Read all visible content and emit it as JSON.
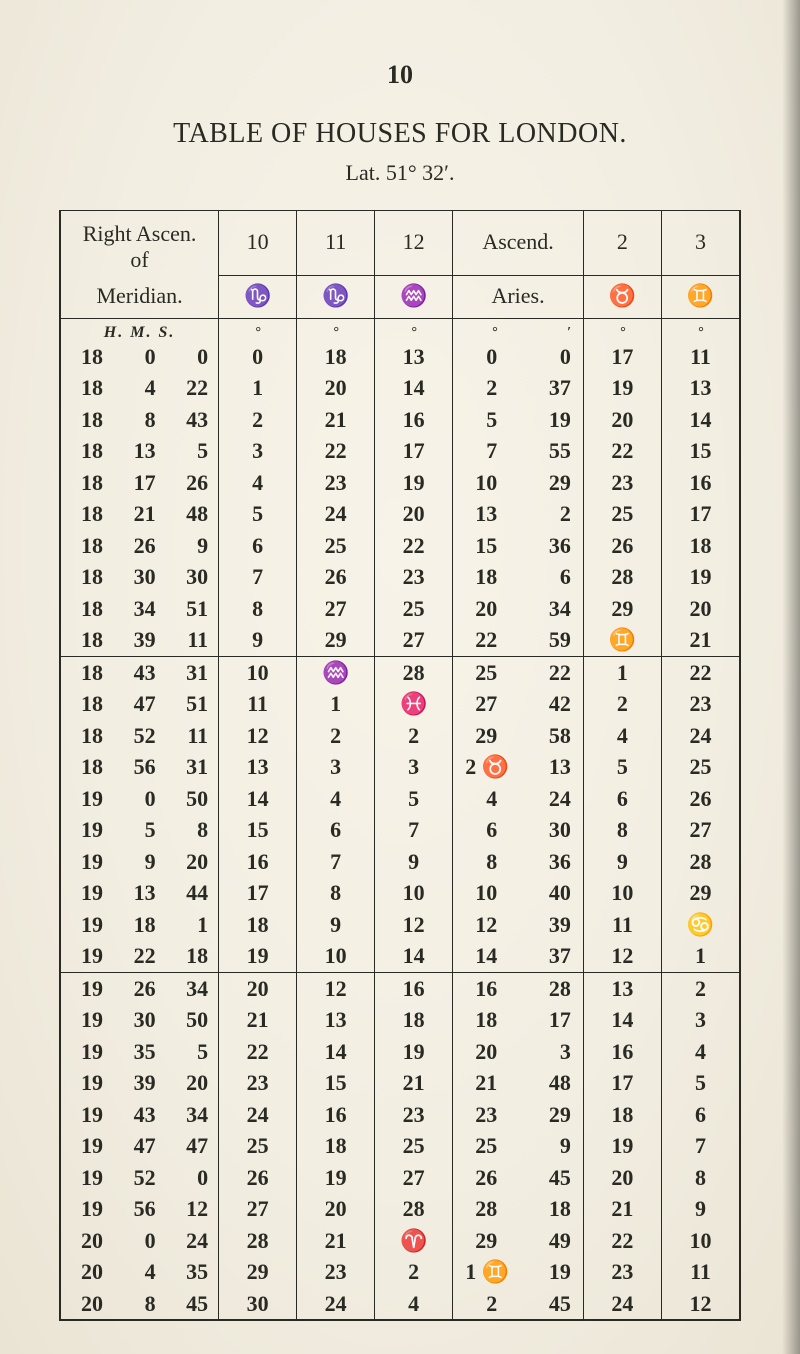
{
  "page_number": "10",
  "title": "TABLE OF HOUSES FOR LONDON.",
  "subtitle": "Lat. 51° 32′.",
  "colors": {
    "background": "#f3efe4",
    "text": "#2a2a24",
    "rule": "#2a2a24"
  },
  "typography": {
    "body_pt": 22,
    "title_pt": 28,
    "family": "serif"
  },
  "header": {
    "ra_line1": "Right Ascen.",
    "ra_line2": "of",
    "ra_line3": "Meridian.",
    "cols_numbers": [
      "10",
      "11",
      "12",
      "Ascend.",
      "2",
      "3"
    ],
    "symbols": [
      "♑",
      "♑",
      "♒",
      "Aries.",
      "♉",
      "♊"
    ],
    "hms": "H.   M.   S.",
    "unit_deg": "°",
    "unit_deg_min": [
      "°",
      "′"
    ]
  },
  "rows": [
    {
      "t": [
        "18",
        "0",
        "0"
      ],
      "c10": "0",
      "c11": "18",
      "c12": "13",
      "asc": [
        "0",
        "0"
      ],
      "c2": "17",
      "c3": "11"
    },
    {
      "t": [
        "18",
        "4",
        "22"
      ],
      "c10": "1",
      "c11": "20",
      "c12": "14",
      "asc": [
        "2",
        "37"
      ],
      "c2": "19",
      "c3": "13"
    },
    {
      "t": [
        "18",
        "8",
        "43"
      ],
      "c10": "2",
      "c11": "21",
      "c12": "16",
      "asc": [
        "5",
        "19"
      ],
      "c2": "20",
      "c3": "14"
    },
    {
      "t": [
        "18",
        "13",
        "5"
      ],
      "c10": "3",
      "c11": "22",
      "c12": "17",
      "asc": [
        "7",
        "55"
      ],
      "c2": "22",
      "c3": "15"
    },
    {
      "t": [
        "18",
        "17",
        "26"
      ],
      "c10": "4",
      "c11": "23",
      "c12": "19",
      "asc": [
        "10",
        "29"
      ],
      "c2": "23",
      "c3": "16"
    },
    {
      "t": [
        "18",
        "21",
        "48"
      ],
      "c10": "5",
      "c11": "24",
      "c12": "20",
      "asc": [
        "13",
        "2"
      ],
      "c2": "25",
      "c3": "17"
    },
    {
      "t": [
        "18",
        "26",
        "9"
      ],
      "c10": "6",
      "c11": "25",
      "c12": "22",
      "asc": [
        "15",
        "36"
      ],
      "c2": "26",
      "c3": "18"
    },
    {
      "t": [
        "18",
        "30",
        "30"
      ],
      "c10": "7",
      "c11": "26",
      "c12": "23",
      "asc": [
        "18",
        "6"
      ],
      "c2": "28",
      "c3": "19"
    },
    {
      "t": [
        "18",
        "34",
        "51"
      ],
      "c10": "8",
      "c11": "27",
      "c12": "25",
      "asc": [
        "20",
        "34"
      ],
      "c2": "29",
      "c3": "20"
    },
    {
      "t": [
        "18",
        "39",
        "11"
      ],
      "c10": "9",
      "c11": "29",
      "c12": "27",
      "asc": [
        "22",
        "59"
      ],
      "c2": "♊",
      "c3": "21"
    },
    {
      "t": [
        "18",
        "43",
        "31"
      ],
      "c10": "10",
      "c11": "♒",
      "c12": "28",
      "asc": [
        "25",
        "22"
      ],
      "c2": "1",
      "c3": "22"
    },
    {
      "t": [
        "18",
        "47",
        "51"
      ],
      "c10": "11",
      "c11": "1",
      "c12": "♓",
      "asc": [
        "27",
        "42"
      ],
      "c2": "2",
      "c3": "23"
    },
    {
      "t": [
        "18",
        "52",
        "11"
      ],
      "c10": "12",
      "c11": "2",
      "c12": "2",
      "asc": [
        "29",
        "58"
      ],
      "c2": "4",
      "c3": "24"
    },
    {
      "t": [
        "18",
        "56",
        "31"
      ],
      "c10": "13",
      "c11": "3",
      "c12": "3",
      "asc": [
        "2 ♉",
        "13"
      ],
      "c2": "5",
      "c3": "25"
    },
    {
      "t": [
        "19",
        "0",
        "50"
      ],
      "c10": "14",
      "c11": "4",
      "c12": "5",
      "asc": [
        "4",
        "24"
      ],
      "c2": "6",
      "c3": "26"
    },
    {
      "t": [
        "19",
        "5",
        "8"
      ],
      "c10": "15",
      "c11": "6",
      "c12": "7",
      "asc": [
        "6",
        "30"
      ],
      "c2": "8",
      "c3": "27"
    },
    {
      "t": [
        "19",
        "9",
        "20"
      ],
      "c10": "16",
      "c11": "7",
      "c12": "9",
      "asc": [
        "8",
        "36"
      ],
      "c2": "9",
      "c3": "28"
    },
    {
      "t": [
        "19",
        "13",
        "44"
      ],
      "c10": "17",
      "c11": "8",
      "c12": "10",
      "asc": [
        "10",
        "40"
      ],
      "c2": "10",
      "c3": "29"
    },
    {
      "t": [
        "19",
        "18",
        "1"
      ],
      "c10": "18",
      "c11": "9",
      "c12": "12",
      "asc": [
        "12",
        "39"
      ],
      "c2": "11",
      "c3": "♋"
    },
    {
      "t": [
        "19",
        "22",
        "18"
      ],
      "c10": "19",
      "c11": "10",
      "c12": "14",
      "asc": [
        "14",
        "37"
      ],
      "c2": "12",
      "c3": "1"
    },
    {
      "t": [
        "19",
        "26",
        "34"
      ],
      "c10": "20",
      "c11": "12",
      "c12": "16",
      "asc": [
        "16",
        "28"
      ],
      "c2": "13",
      "c3": "2"
    },
    {
      "t": [
        "19",
        "30",
        "50"
      ],
      "c10": "21",
      "c11": "13",
      "c12": "18",
      "asc": [
        "18",
        "17"
      ],
      "c2": "14",
      "c3": "3"
    },
    {
      "t": [
        "19",
        "35",
        "5"
      ],
      "c10": "22",
      "c11": "14",
      "c12": "19",
      "asc": [
        "20",
        "3"
      ],
      "c2": "16",
      "c3": "4"
    },
    {
      "t": [
        "19",
        "39",
        "20"
      ],
      "c10": "23",
      "c11": "15",
      "c12": "21",
      "asc": [
        "21",
        "48"
      ],
      "c2": "17",
      "c3": "5"
    },
    {
      "t": [
        "19",
        "43",
        "34"
      ],
      "c10": "24",
      "c11": "16",
      "c12": "23",
      "asc": [
        "23",
        "29"
      ],
      "c2": "18",
      "c3": "6"
    },
    {
      "t": [
        "19",
        "47",
        "47"
      ],
      "c10": "25",
      "c11": "18",
      "c12": "25",
      "asc": [
        "25",
        "9"
      ],
      "c2": "19",
      "c3": "7"
    },
    {
      "t": [
        "19",
        "52",
        "0"
      ],
      "c10": "26",
      "c11": "19",
      "c12": "27",
      "asc": [
        "26",
        "45"
      ],
      "c2": "20",
      "c3": "8"
    },
    {
      "t": [
        "19",
        "56",
        "12"
      ],
      "c10": "27",
      "c11": "20",
      "c12": "28",
      "asc": [
        "28",
        "18"
      ],
      "c2": "21",
      "c3": "9"
    },
    {
      "t": [
        "20",
        "0",
        "24"
      ],
      "c10": "28",
      "c11": "21",
      "c12": "♈",
      "asc": [
        "29",
        "49"
      ],
      "c2": "22",
      "c3": "10"
    },
    {
      "t": [
        "20",
        "4",
        "35"
      ],
      "c10": "29",
      "c11": "23",
      "c12": "2",
      "asc": [
        "1 ♊",
        "19"
      ],
      "c2": "23",
      "c3": "11"
    },
    {
      "t": [
        "20",
        "8",
        "45"
      ],
      "c10": "30",
      "c11": "24",
      "c12": "4",
      "asc": [
        "2",
        "45"
      ],
      "c2": "24",
      "c3": "12"
    }
  ],
  "section_breaks_after": [
    10,
    20
  ]
}
